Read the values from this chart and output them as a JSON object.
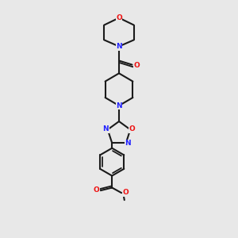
{
  "bg_color": "#e8e8e8",
  "bond_color": "#1a1a1a",
  "N_color": "#2222ff",
  "O_color": "#ee1111",
  "lw": 1.5,
  "fs": 6.5,
  "fig_w": 3.0,
  "fig_h": 3.0,
  "dpi": 100,
  "xlim": [
    2.5,
    7.5
  ],
  "ylim": [
    0.2,
    10.2
  ]
}
